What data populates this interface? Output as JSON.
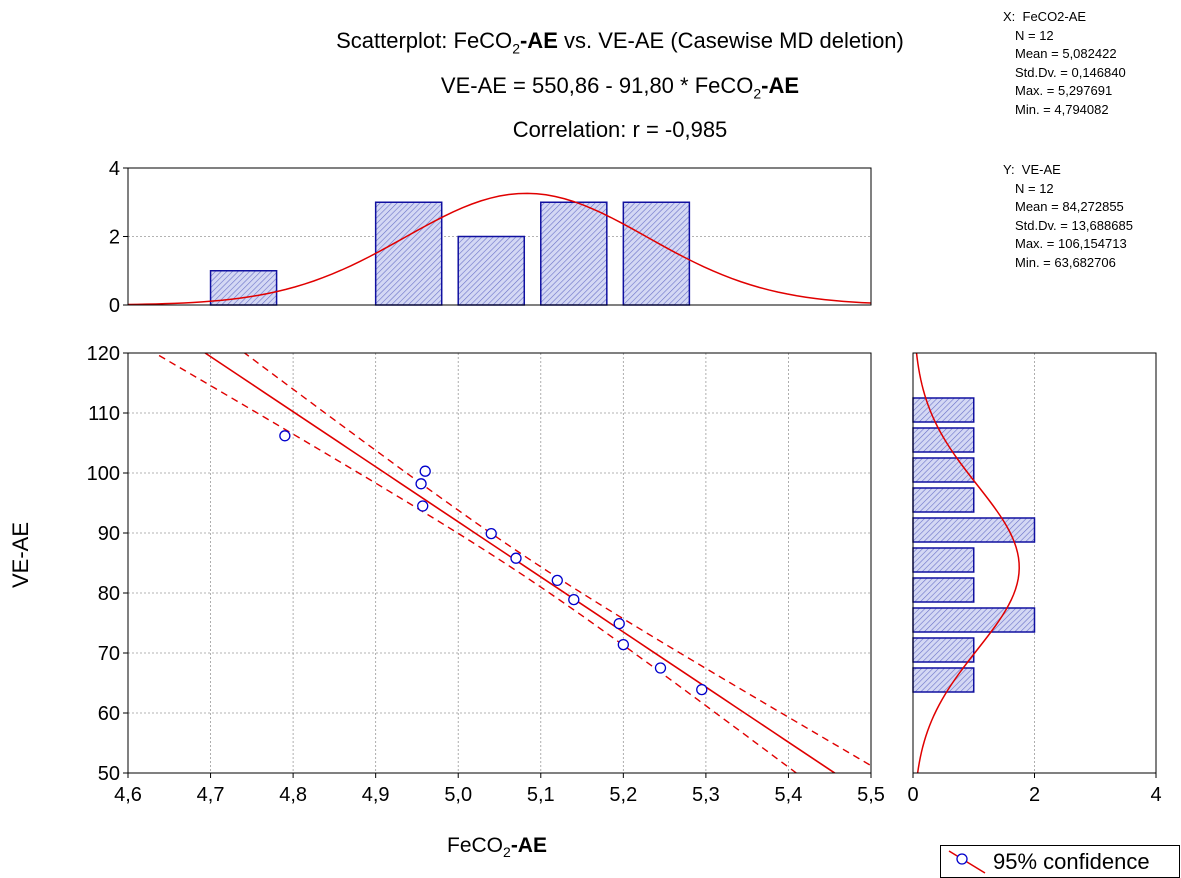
{
  "title": {
    "prefix": "Scatterplot: FeCO",
    "sub": "2",
    "bold": "-AE",
    "suffix": " vs. VE-AE (Casewise MD deletion)"
  },
  "equation": {
    "prefix": "VE-AE = 550,86 - 91,80  * FeCO",
    "sub": "2",
    "bold": "-AE"
  },
  "correlation": "Correlation: r = -0,985",
  "stats_x": {
    "header": "X:  FeCO2-AE",
    "n": "N = 12",
    "mean": "Mean = 5,082422",
    "std": "Std.Dv. = 0,146840",
    "max": "Max. = 5,297691",
    "min": "Min. = 4,794082"
  },
  "stats_y": {
    "header": "Y:  VE-AE",
    "n": "N = 12",
    "mean": "Mean = 84,272855",
    "std": "Std.Dv. = 13,688685",
    "max": "Max. = 106,154713",
    "min": "Min. = 63,682706"
  },
  "axes": {
    "xlabel": {
      "prefix": "FeCO",
      "sub": "2",
      "bold": "-AE"
    },
    "ylabel": "VE-AE"
  },
  "legend": {
    "label": "95% confidence"
  },
  "colors": {
    "fit": "#e00000",
    "points": "#0000cc",
    "bars_border": "#1010a0",
    "bars_fill": "#c8cef0",
    "grid": "#9a9a9a"
  },
  "chart_data": [
    {
      "type": "scatter",
      "x": [
        4.79,
        4.955,
        4.96,
        4.957,
        5.04,
        5.07,
        5.12,
        5.14,
        5.195,
        5.2,
        5.245,
        5.295
      ],
      "y": [
        106.2,
        98.2,
        100.3,
        94.5,
        89.9,
        85.8,
        82.1,
        78.9,
        74.9,
        71.4,
        67.5,
        63.9
      ],
      "xlim": [
        4.6,
        5.5
      ],
      "ylim": [
        50,
        120
      ],
      "xticks": [
        "4,6",
        "4,7",
        "4,8",
        "4,9",
        "5,0",
        "5,1",
        "5,2",
        "5,3",
        "5,4",
        "5,5"
      ],
      "yticks": [
        "50",
        "60",
        "70",
        "80",
        "90",
        "100",
        "110",
        "120"
      ],
      "fit": {
        "intercept": 550.86,
        "slope": -91.8
      },
      "confidence": 0.95,
      "grid": true
    },
    {
      "type": "bar",
      "orientation": "vertical",
      "bins": [
        [
          4.7,
          4.78
        ],
        [
          4.9,
          4.98
        ],
        [
          5.0,
          5.08
        ],
        [
          5.1,
          5.18
        ],
        [
          5.2,
          5.28
        ]
      ],
      "values": [
        1,
        3,
        2,
        3,
        3
      ],
      "ylim": [
        0,
        4
      ],
      "yticks": [
        "0",
        "2",
        "4"
      ],
      "normal_curve": {
        "mean": 5.082422,
        "std": 0.14684
      }
    },
    {
      "type": "bar",
      "orientation": "horizontal",
      "bins": [
        [
          63.5,
          67.5
        ],
        [
          68.5,
          72.5
        ],
        [
          73.5,
          77.5
        ],
        [
          78.5,
          82.5
        ],
        [
          83.5,
          87.5
        ],
        [
          88.5,
          92.5
        ],
        [
          93.5,
          97.5
        ],
        [
          98.5,
          102.5
        ],
        [
          103.5,
          107.5
        ],
        [
          108.5,
          112.5
        ]
      ],
      "values": [
        1,
        1,
        2,
        1,
        1,
        2,
        1,
        1,
        1,
        1
      ],
      "xlim": [
        0,
        4
      ],
      "xticks": [
        "0",
        "2",
        "4"
      ],
      "normal_curve": {
        "mean": 84.272855,
        "std": 13.688685
      }
    }
  ]
}
